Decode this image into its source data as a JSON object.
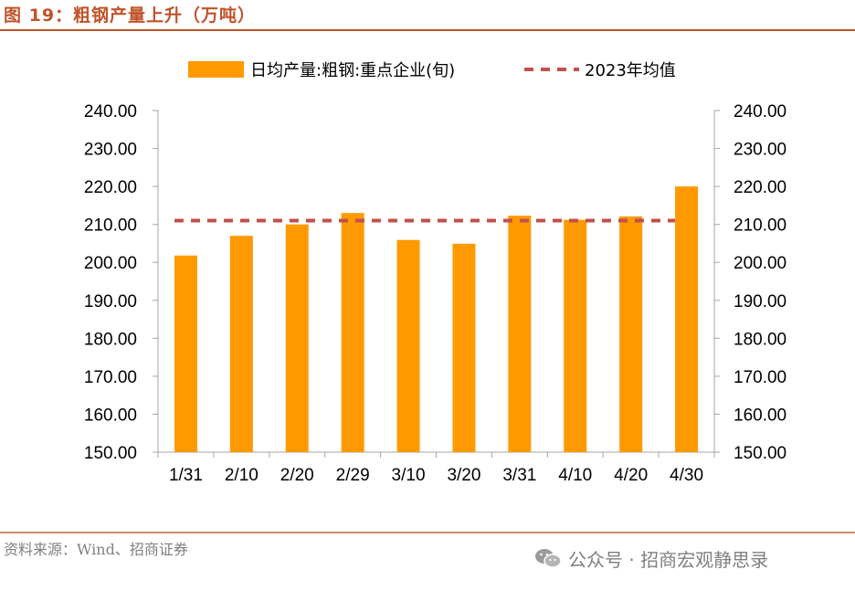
{
  "figure": {
    "title": "图 19：粗钢产量上升（万吨）",
    "source": "资料来源：Wind、招商证券",
    "watermark": "公众号 · 招商宏观静思录",
    "watermark_icon": "wechat-icon"
  },
  "colors": {
    "bar": "#ff9900",
    "mean_line": "#c0504d",
    "accent": "#c0532a"
  },
  "chart_data": {
    "type": "bar",
    "categories": [
      "1/31",
      "2/10",
      "2/20",
      "2/29",
      "3/10",
      "3/20",
      "3/31",
      "4/10",
      "4/20",
      "4/30"
    ],
    "series": [
      {
        "name": "日均产量:粗钢:重点企业(旬)",
        "type": "bar",
        "values": [
          201.8,
          207.0,
          210.0,
          213.0,
          205.9,
          204.9,
          212.3,
          211.2,
          212.1,
          220.0
        ]
      },
      {
        "name": "2023年均值",
        "type": "line",
        "style": "dashed",
        "values": [
          211.0,
          211.0,
          211.0,
          211.0,
          211.0,
          211.0,
          211.0,
          211.0,
          211.0,
          211.0
        ]
      }
    ],
    "ylim": [
      150,
      240
    ],
    "yticks": [
      "150.00",
      "160.00",
      "170.00",
      "180.00",
      "190.00",
      "200.00",
      "210.00",
      "220.00",
      "230.00",
      "240.00"
    ],
    "y2ticks": [
      "150.00",
      "160.00",
      "170.00",
      "180.00",
      "190.00",
      "200.00",
      "210.00",
      "220.00",
      "230.00",
      "240.00"
    ],
    "legend_position": "top",
    "grid": false,
    "xlabel": "",
    "ylabel": ""
  }
}
